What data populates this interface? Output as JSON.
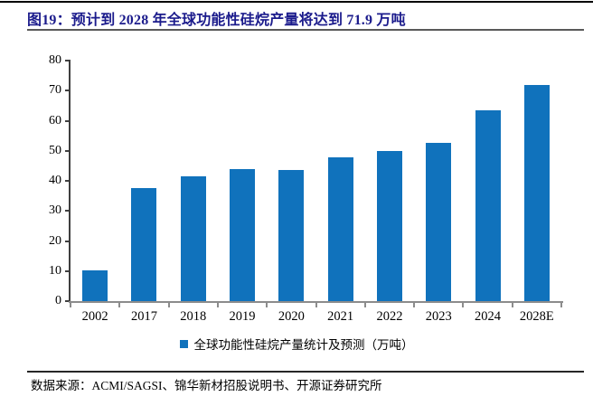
{
  "header": {
    "title": "图19：预计到 2028 年全球功能性硅烷产量将达到 71.9 万吨"
  },
  "chart_data": {
    "type": "bar",
    "title": "图19：预计到 2028 年全球功能性硅烷产量将达到 71.9 万吨",
    "categories": [
      "2002",
      "2017",
      "2018",
      "2019",
      "2020",
      "2021",
      "2022",
      "2023",
      "2024",
      "2028E"
    ],
    "values": [
      10.2,
      37.6,
      41.6,
      44.0,
      43.5,
      47.7,
      49.8,
      52.6,
      63.5,
      71.9
    ],
    "legend": [
      "全球功能性硅烷产量统计及预测（万吨）"
    ],
    "xlabel": "",
    "ylabel": "",
    "ylim": [
      0,
      80
    ],
    "ytick_step": 10,
    "yticks": [
      0,
      10,
      20,
      30,
      40,
      50,
      60,
      70,
      80
    ],
    "grid": false,
    "legend_position": "bottom",
    "bar_color": "#1072BC"
  },
  "footer": {
    "source": "数据来源：ACMI/SAGSI、锦华新材招股说明书、开源证券研究所"
  },
  "colors": {
    "title_text": "#1B1B8C",
    "bar": "#1072BC",
    "top_rule": "#000000",
    "title_rule": "#595959",
    "footer_rule": "#262626",
    "y_axis": "#3F3F3F",
    "x_axis": "#8C8C8C",
    "axis_text": "#000000"
  }
}
